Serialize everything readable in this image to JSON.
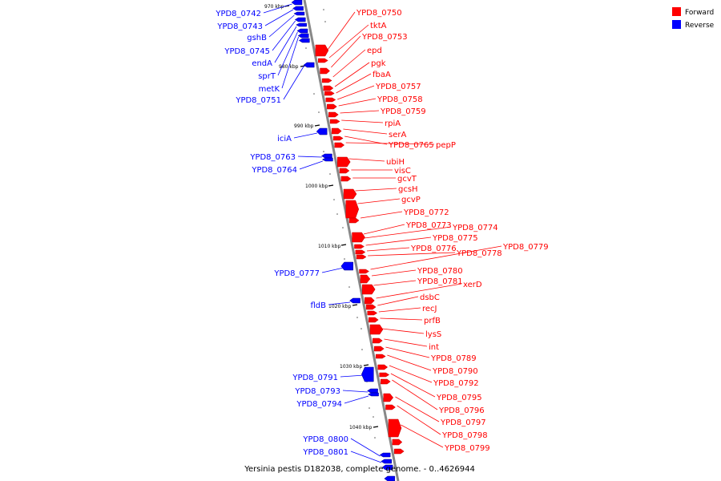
{
  "colors": {
    "forward": "#ff0000",
    "reverse": "#0000ff",
    "backbone": "#888888"
  },
  "legend": [
    {
      "label": "Forward",
      "color": "#ff0000"
    },
    {
      "label": "Reverse",
      "color": "#0000ff"
    }
  ],
  "caption": "Yersinia pestis D182038, complete genome. - 0..4626944",
  "ticks": [
    "970 kbp",
    "980 kbp",
    "990 kbp",
    "1000 kbp",
    "1010 kbp",
    "1020 kbp",
    "1030 kbp",
    "1040 kbp"
  ],
  "forward_genes": [
    "YPD8_0750",
    "tktA",
    "YPD8_0753",
    "epd",
    "pgk",
    "fbaA",
    "YPD8_0757",
    "YPD8_0758",
    "YPD8_0759",
    "rpiA",
    "serA",
    "YPD8_0765",
    "pepP",
    "ubiH",
    "visC",
    "gcvT",
    "gcsH",
    "gcvP",
    "YPD8_0772",
    "YPD8_0773",
    "YPD8_0774",
    "YPD8_0775",
    "YPD8_0776",
    "YPD8_0778",
    "YPD8_0779",
    "YPD8_0780",
    "YPD8_0781",
    "xerD",
    "dsbC",
    "recJ",
    "prfB",
    "lysS",
    "int",
    "YPD8_0789",
    "YPD8_0790",
    "YPD8_0792",
    "YPD8_0795",
    "YPD8_0796",
    "YPD8_0797",
    "YPD8_0798",
    "YPD8_0799"
  ],
  "reverse_genes": [
    "YPD8_0742",
    "YPD8_0743",
    "gshB",
    "YPD8_0745",
    "endA",
    "sprT",
    "metK",
    "YPD8_0751",
    "iciA",
    "YPD8_0763",
    "YPD8_0764",
    "YPD8_0777",
    "fldB",
    "YPD8_0791",
    "YPD8_0793",
    "YPD8_0794",
    "YPD8_0800",
    "YPD8_0801"
  ]
}
